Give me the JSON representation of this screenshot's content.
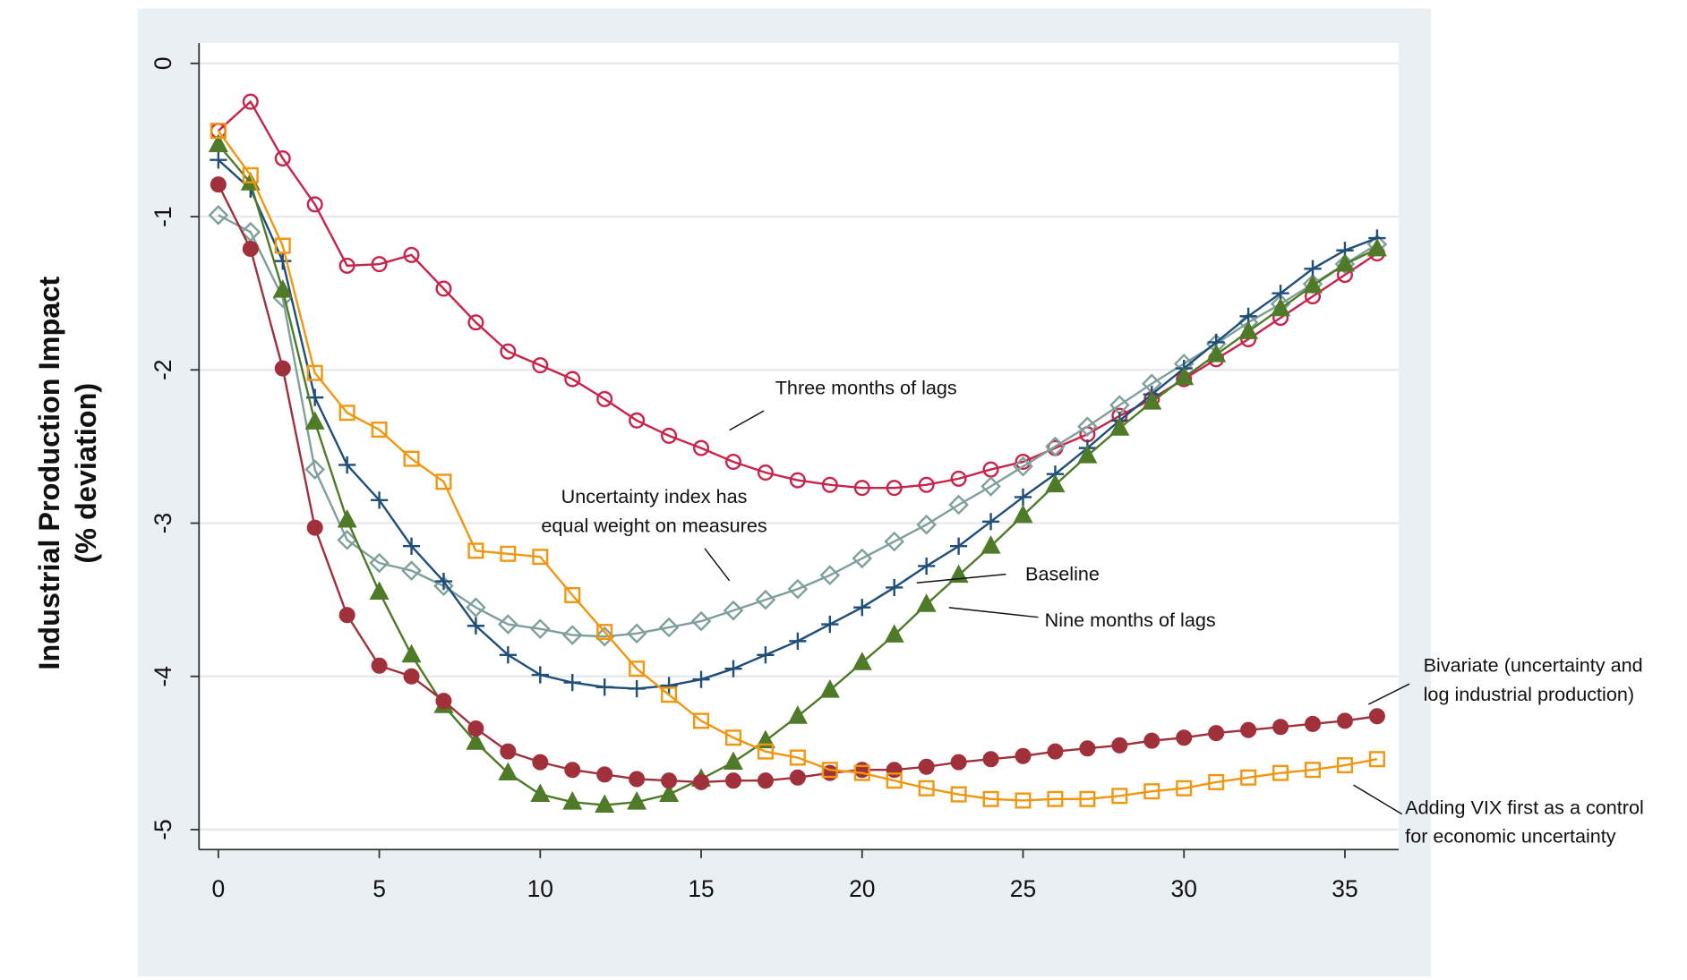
{
  "chart_data": {
    "type": "line",
    "ylabel": [
      "Industrial Production Impact",
      "(% deviation)"
    ],
    "x": [
      0,
      1,
      2,
      3,
      4,
      5,
      6,
      7,
      8,
      9,
      10,
      11,
      12,
      13,
      14,
      15,
      16,
      17,
      18,
      19,
      20,
      21,
      22,
      23,
      24,
      25,
      26,
      27,
      28,
      29,
      30,
      31,
      32,
      33,
      34,
      35,
      36
    ],
    "xlim": [
      -0.6,
      36.67
    ],
    "xticks": [
      0,
      5,
      10,
      15,
      20,
      25,
      30,
      35
    ],
    "ylim": [
      -5.13,
      0.133
    ],
    "yticks": [
      -5,
      -4,
      -3,
      -2,
      -1,
      0
    ],
    "grid": true,
    "series": [
      {
        "name": [
          "Three months of lags"
        ],
        "color": "#c8234a",
        "marker": "open-circle",
        "values": [
          -0.44,
          -0.25,
          -0.62,
          -0.92,
          -1.32,
          -1.31,
          -1.25,
          -1.47,
          -1.69,
          -1.88,
          -1.97,
          -2.06,
          -2.19,
          -2.33,
          -2.43,
          -2.51,
          -2.6,
          -2.67,
          -2.72,
          -2.75,
          -2.77,
          -2.77,
          -2.75,
          -2.71,
          -2.65,
          -2.6,
          -2.51,
          -2.42,
          -2.3,
          -2.19,
          -2.06,
          -1.93,
          -1.8,
          -1.66,
          -1.52,
          -1.38,
          -1.24
        ]
      },
      {
        "name": [
          "Uncertainty index has",
          "equal weight on measures"
        ],
        "color": "#7f9f9a",
        "marker": "open-diamond",
        "values": [
          -0.99,
          -1.1,
          -1.53,
          -2.65,
          -3.11,
          -3.26,
          -3.31,
          -3.41,
          -3.55,
          -3.66,
          -3.69,
          -3.73,
          -3.74,
          -3.72,
          -3.68,
          -3.64,
          -3.57,
          -3.5,
          -3.43,
          -3.34,
          -3.23,
          -3.12,
          -3.01,
          -2.88,
          -2.76,
          -2.63,
          -2.5,
          -2.37,
          -2.23,
          -2.09,
          -1.96,
          -1.83,
          -1.69,
          -1.57,
          -1.44,
          -1.31,
          -1.18
        ]
      },
      {
        "name": [
          "Baseline"
        ],
        "color": "#1f4e79",
        "marker": "plus",
        "values": [
          -0.63,
          -0.82,
          -1.29,
          -2.18,
          -2.62,
          -2.85,
          -3.15,
          -3.38,
          -3.67,
          -3.86,
          -3.99,
          -4.04,
          -4.07,
          -4.08,
          -4.06,
          -4.02,
          -3.95,
          -3.86,
          -3.77,
          -3.66,
          -3.55,
          -3.42,
          -3.28,
          -3.15,
          -2.99,
          -2.83,
          -2.68,
          -2.51,
          -2.33,
          -2.16,
          -1.99,
          -1.82,
          -1.65,
          -1.5,
          -1.34,
          -1.22,
          -1.14
        ]
      },
      {
        "name": [
          "Nine months of lags"
        ],
        "color": "#4f7a28",
        "marker": "triangle",
        "values": [
          -0.53,
          -0.78,
          -1.48,
          -2.34,
          -2.98,
          -3.45,
          -3.86,
          -4.19,
          -4.43,
          -4.63,
          -4.77,
          -4.82,
          -4.84,
          -4.82,
          -4.77,
          -4.67,
          -4.56,
          -4.42,
          -4.26,
          -4.09,
          -3.91,
          -3.73,
          -3.53,
          -3.34,
          -3.15,
          -2.95,
          -2.75,
          -2.56,
          -2.38,
          -2.21,
          -2.05,
          -1.9,
          -1.75,
          -1.6,
          -1.45,
          -1.31,
          -1.21
        ]
      },
      {
        "name": [
          "Bivariate (uncertainty and",
          "log industrial production)"
        ],
        "color": "#a0303a",
        "marker": "filled-circle",
        "values": [
          -0.79,
          -1.21,
          -1.99,
          -3.03,
          -3.6,
          -3.93,
          -4.0,
          -4.16,
          -4.34,
          -4.49,
          -4.56,
          -4.61,
          -4.64,
          -4.67,
          -4.68,
          -4.69,
          -4.68,
          -4.68,
          -4.66,
          -4.63,
          -4.61,
          -4.61,
          -4.59,
          -4.56,
          -4.54,
          -4.52,
          -4.49,
          -4.47,
          -4.45,
          -4.42,
          -4.4,
          -4.37,
          -4.35,
          -4.33,
          -4.31,
          -4.29,
          -4.26
        ]
      },
      {
        "name": [
          "Adding VIX first as a control",
          "for economic uncertainty"
        ],
        "color": "#f0960f",
        "marker": "open-square",
        "values": [
          -0.44,
          -0.73,
          -1.19,
          -2.02,
          -2.28,
          -2.39,
          -2.58,
          -2.73,
          -3.18,
          -3.2,
          -3.22,
          -3.47,
          -3.71,
          -3.95,
          -4.12,
          -4.29,
          -4.4,
          -4.49,
          -4.53,
          -4.61,
          -4.63,
          -4.68,
          -4.73,
          -4.77,
          -4.8,
          -4.81,
          -4.8,
          -4.8,
          -4.78,
          -4.75,
          -4.73,
          -4.69,
          -4.66,
          -4.63,
          -4.61,
          -4.58,
          -4.54
        ]
      }
    ]
  }
}
